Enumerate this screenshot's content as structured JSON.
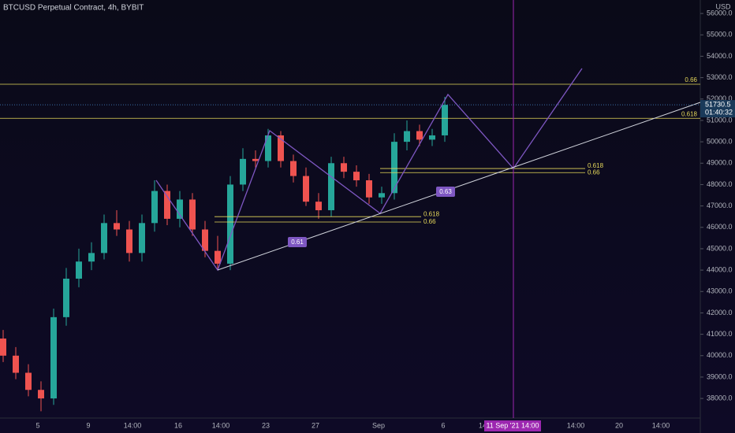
{
  "header": {
    "title": "BTCUSD Perpetual Contract, 4h, BYBIT",
    "currency": "USD"
  },
  "chart_data": {
    "type": "candlestick",
    "open": [
      40800,
      40000,
      39200,
      38400,
      38000,
      41800,
      43600,
      44400,
      44800,
      46200,
      45900,
      44800,
      46200,
      47700,
      46400,
      47300,
      45900,
      44900,
      44300,
      48000,
      49200,
      49100,
      50300,
      49100,
      48400,
      47200,
      46800,
      49000,
      48600,
      48200,
      47400,
      47600,
      50000,
      50500,
      50100,
      50300
    ],
    "high": [
      41200,
      40400,
      39600,
      38800,
      42200,
      44100,
      45000,
      45300,
      46600,
      46800,
      46300,
      46600,
      48200,
      48000,
      47700,
      47600,
      46300,
      45600,
      48400,
      49700,
      49600,
      50600,
      50500,
      49400,
      48800,
      47600,
      49300,
      49300,
      48900,
      48500,
      47900,
      50400,
      51000,
      50800,
      50600,
      52100
    ],
    "low": [
      39700,
      38900,
      38100,
      37400,
      37700,
      41400,
      43200,
      44000,
      44500,
      45600,
      44400,
      44400,
      45800,
      46100,
      46000,
      45600,
      44600,
      44000,
      44000,
      47700,
      48800,
      48800,
      48800,
      48100,
      47000,
      46400,
      46500,
      48300,
      47900,
      47100,
      47100,
      47300,
      49600,
      49800,
      49800,
      50000
    ],
    "close": [
      40000,
      39200,
      38400,
      38000,
      41800,
      43600,
      44400,
      44800,
      46200,
      45900,
      44800,
      46200,
      47700,
      46400,
      47300,
      45900,
      44900,
      44300,
      48000,
      49200,
      49100,
      50300,
      49100,
      48400,
      47200,
      46800,
      49000,
      48600,
      48200,
      47400,
      47600,
      50000,
      50500,
      50100,
      50300,
      51730
    ],
    "up_color": "#26a69a",
    "down_color": "#ef5350",
    "ylim": [
      37120,
      56630
    ],
    "yticks": [
      {
        "value": 38000,
        "label": "38000.0"
      },
      {
        "value": 39000,
        "label": "39000.0"
      },
      {
        "value": 40000,
        "label": "40000.0"
      },
      {
        "value": 41000,
        "label": "41000.0"
      },
      {
        "value": 42000,
        "label": "42000.0"
      },
      {
        "value": 43000,
        "label": "43000.0"
      },
      {
        "value": 44000,
        "label": "44000.0"
      },
      {
        "value": 45000,
        "label": "45000.0"
      },
      {
        "value": 46000,
        "label": "46000.0"
      },
      {
        "value": 47000,
        "label": "47000.0"
      },
      {
        "value": 48000,
        "label": "48000.0"
      },
      {
        "value": 49000,
        "label": "49000.0"
      },
      {
        "value": 50000,
        "label": "50000.0"
      },
      {
        "value": 51000,
        "label": "51000.0"
      },
      {
        "value": 52000,
        "label": "52000.0"
      },
      {
        "value": 53000,
        "label": "53000.0"
      },
      {
        "value": 54000,
        "label": "54000.0"
      },
      {
        "value": 55000,
        "label": "55000.0"
      },
      {
        "value": 56000,
        "label": "56000.0"
      }
    ],
    "xticks": [
      "5",
      "9",
      "14:00",
      "16",
      "14:00",
      "23",
      "27",
      "Sep",
      "6",
      "14",
      "14:00",
      "20",
      "14:00"
    ],
    "last_price": {
      "value": 51730.5,
      "label": "51730.5",
      "countdown": "01:40:32"
    },
    "crosshair_label": "11 Sep '21   14:00",
    "levels": [
      {
        "value": 52690,
        "label": "0.66"
      },
      {
        "value": 51100,
        "label": "0.618"
      }
    ],
    "short_levels": [
      {
        "value": 48750,
        "label": "0.618"
      },
      {
        "value": 48560,
        "label": "0.66"
      },
      {
        "value": 46500,
        "label": "0.618"
      },
      {
        "value": 46250,
        "label": "0.66"
      }
    ],
    "ratio_labels": [
      "0.63",
      "0.61"
    ]
  }
}
